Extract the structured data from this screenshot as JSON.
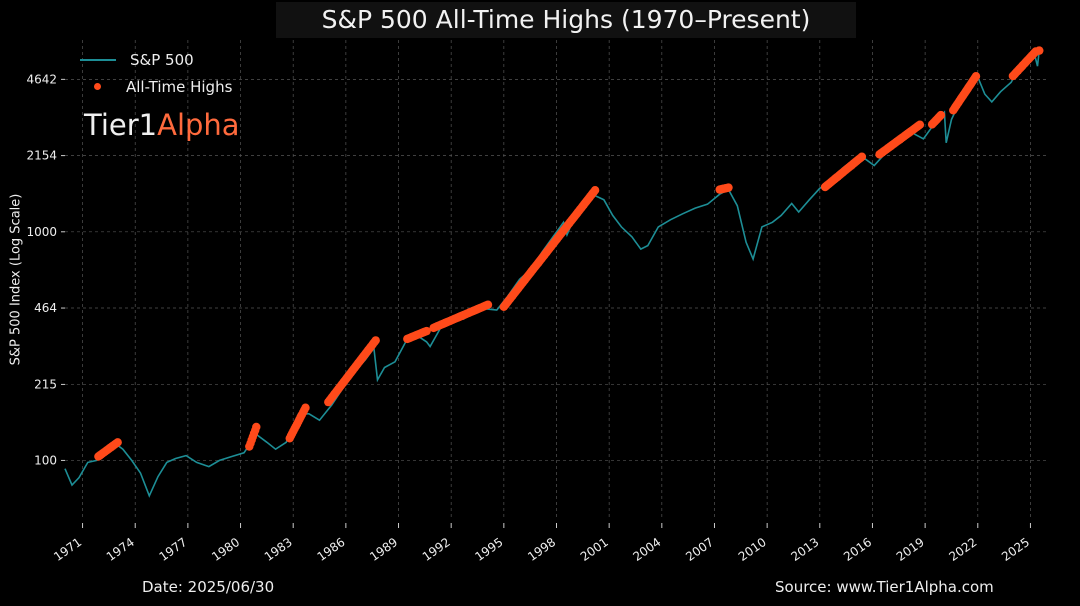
{
  "title": "S&P 500 All-Time Highs (1970–Present)",
  "legend": {
    "series_label": "S&P 500",
    "highs_label": "All-Time Highs"
  },
  "brand": {
    "part1": "Tier1",
    "part2": "Alpha"
  },
  "footer": {
    "date": "Date: 2025/06/30",
    "source": "Source: www.Tier1Alpha.com"
  },
  "colors": {
    "background": "#000000",
    "series": "#1d8e96",
    "highs": "#ff4a1a",
    "grid": "#555555",
    "brand_accent": "#ff6a3d"
  },
  "chart_data": {
    "type": "line",
    "title": "S&P 500 All-Time Highs (1970–Present)",
    "ylabel": "S&P 500 Index (Log Scale)",
    "xlabel": "",
    "yscale": "log",
    "xlim": [
      1970.0,
      2026.0
    ],
    "ylim": [
      56,
      6900
    ],
    "yticks": [
      100,
      215,
      464,
      1000,
      2154,
      4642
    ],
    "xticks": [
      "1971",
      "1974",
      "1977",
      "1980",
      "1983",
      "1986",
      "1989",
      "1992",
      "1995",
      "1998",
      "2001",
      "2004",
      "2007",
      "2010",
      "2013",
      "2016",
      "2019",
      "2022",
      "2025"
    ],
    "grid": true,
    "legend_position": "top-left",
    "series": [
      {
        "name": "S&P 500",
        "x": [
          1970.0,
          1970.4,
          1970.8,
          1971.3,
          1971.8,
          1972.3,
          1972.9,
          1973.3,
          1973.8,
          1974.3,
          1974.8,
          1975.3,
          1975.8,
          1976.3,
          1976.9,
          1977.5,
          1978.2,
          1978.8,
          1979.5,
          1980.2,
          1980.9,
          1981.5,
          1982.0,
          1982.6,
          1983.3,
          1983.9,
          1984.5,
          1985.2,
          1985.8,
          1986.5,
          1987.1,
          1987.6,
          1987.8,
          1988.2,
          1988.8,
          1989.5,
          1990.1,
          1990.6,
          1990.8,
          1991.4,
          1992.0,
          1992.7,
          1993.3,
          1994.0,
          1994.6,
          1995.2,
          1995.9,
          1996.5,
          1997.2,
          1997.8,
          1998.4,
          1998.6,
          1999.2,
          1999.8,
          2000.2,
          2000.7,
          2001.2,
          2001.7,
          2002.3,
          2002.8,
          2003.2,
          2003.8,
          2004.5,
          2005.2,
          2005.9,
          2006.6,
          2007.3,
          2007.8,
          2008.3,
          2008.8,
          2009.2,
          2009.7,
          2010.3,
          2010.8,
          2011.4,
          2011.8,
          2012.4,
          2013.0,
          2013.6,
          2014.3,
          2014.9,
          2015.6,
          2016.1,
          2016.6,
          2017.2,
          2017.8,
          2018.3,
          2018.9,
          2019.5,
          2020.1,
          2020.2,
          2020.5,
          2020.9,
          2021.5,
          2022.0,
          2022.4,
          2022.8,
          2023.3,
          2023.9,
          2024.4,
          2024.9,
          2025.2,
          2025.4,
          2025.5
        ],
        "values": [
          92,
          78,
          84,
          98,
          100,
          108,
          118,
          112,
          100,
          88,
          70,
          85,
          98,
          102,
          105,
          98,
          94,
          100,
          104,
          108,
          130,
          120,
          112,
          120,
          160,
          160,
          150,
          175,
          205,
          245,
          275,
          310,
          225,
          255,
          270,
          340,
          350,
          330,
          315,
          380,
          410,
          415,
          445,
          460,
          455,
          520,
          620,
          680,
          820,
          950,
          1100,
          970,
          1250,
          1380,
          1440,
          1380,
          1180,
          1050,
          950,
          840,
          870,
          1050,
          1130,
          1200,
          1270,
          1320,
          1460,
          1530,
          1300,
          900,
          760,
          1050,
          1100,
          1180,
          1330,
          1220,
          1380,
          1550,
          1650,
          1900,
          2060,
          2080,
          1950,
          2150,
          2350,
          2650,
          2700,
          2550,
          2950,
          3330,
          2450,
          3100,
          3600,
          4300,
          4750,
          4000,
          3700,
          4100,
          4500,
          5300,
          5900,
          6100,
          5300,
          6200
        ]
      }
    ],
    "highs": {
      "name": "All-Time Highs",
      "segments": [
        {
          "x_start": 1971.9,
          "x_end": 1973.0,
          "y_start": 104,
          "y_end": 120
        },
        {
          "x_start": 1980.5,
          "x_end": 1980.9,
          "y_start": 115,
          "y_end": 140
        },
        {
          "x_start": 1982.8,
          "x_end": 1983.7,
          "y_start": 125,
          "y_end": 170
        },
        {
          "x_start": 1985.0,
          "x_end": 1987.7,
          "y_start": 180,
          "y_end": 335
        },
        {
          "x_start": 1989.5,
          "x_end": 1990.6,
          "y_start": 340,
          "y_end": 368
        },
        {
          "x_start": 1991.0,
          "x_end": 1994.1,
          "y_start": 380,
          "y_end": 480
        },
        {
          "x_start": 1995.0,
          "x_end": 2000.2,
          "y_start": 470,
          "y_end": 1520
        },
        {
          "x_start": 2007.3,
          "x_end": 2007.8,
          "y_start": 1530,
          "y_end": 1560
        },
        {
          "x_start": 2013.3,
          "x_end": 2015.4,
          "y_start": 1570,
          "y_end": 2130
        },
        {
          "x_start": 2016.4,
          "x_end": 2018.7,
          "y_start": 2180,
          "y_end": 2940
        },
        {
          "x_start": 2019.4,
          "x_end": 2019.9,
          "y_start": 2950,
          "y_end": 3240
        },
        {
          "x_start": 2020.6,
          "x_end": 2021.9,
          "y_start": 3400,
          "y_end": 4790
        },
        {
          "x_start": 2024.0,
          "x_end": 2025.3,
          "y_start": 4800,
          "y_end": 6145
        },
        {
          "x_start": 2025.5,
          "x_end": 2025.5,
          "y_start": 6200,
          "y_end": 6200
        }
      ]
    }
  }
}
